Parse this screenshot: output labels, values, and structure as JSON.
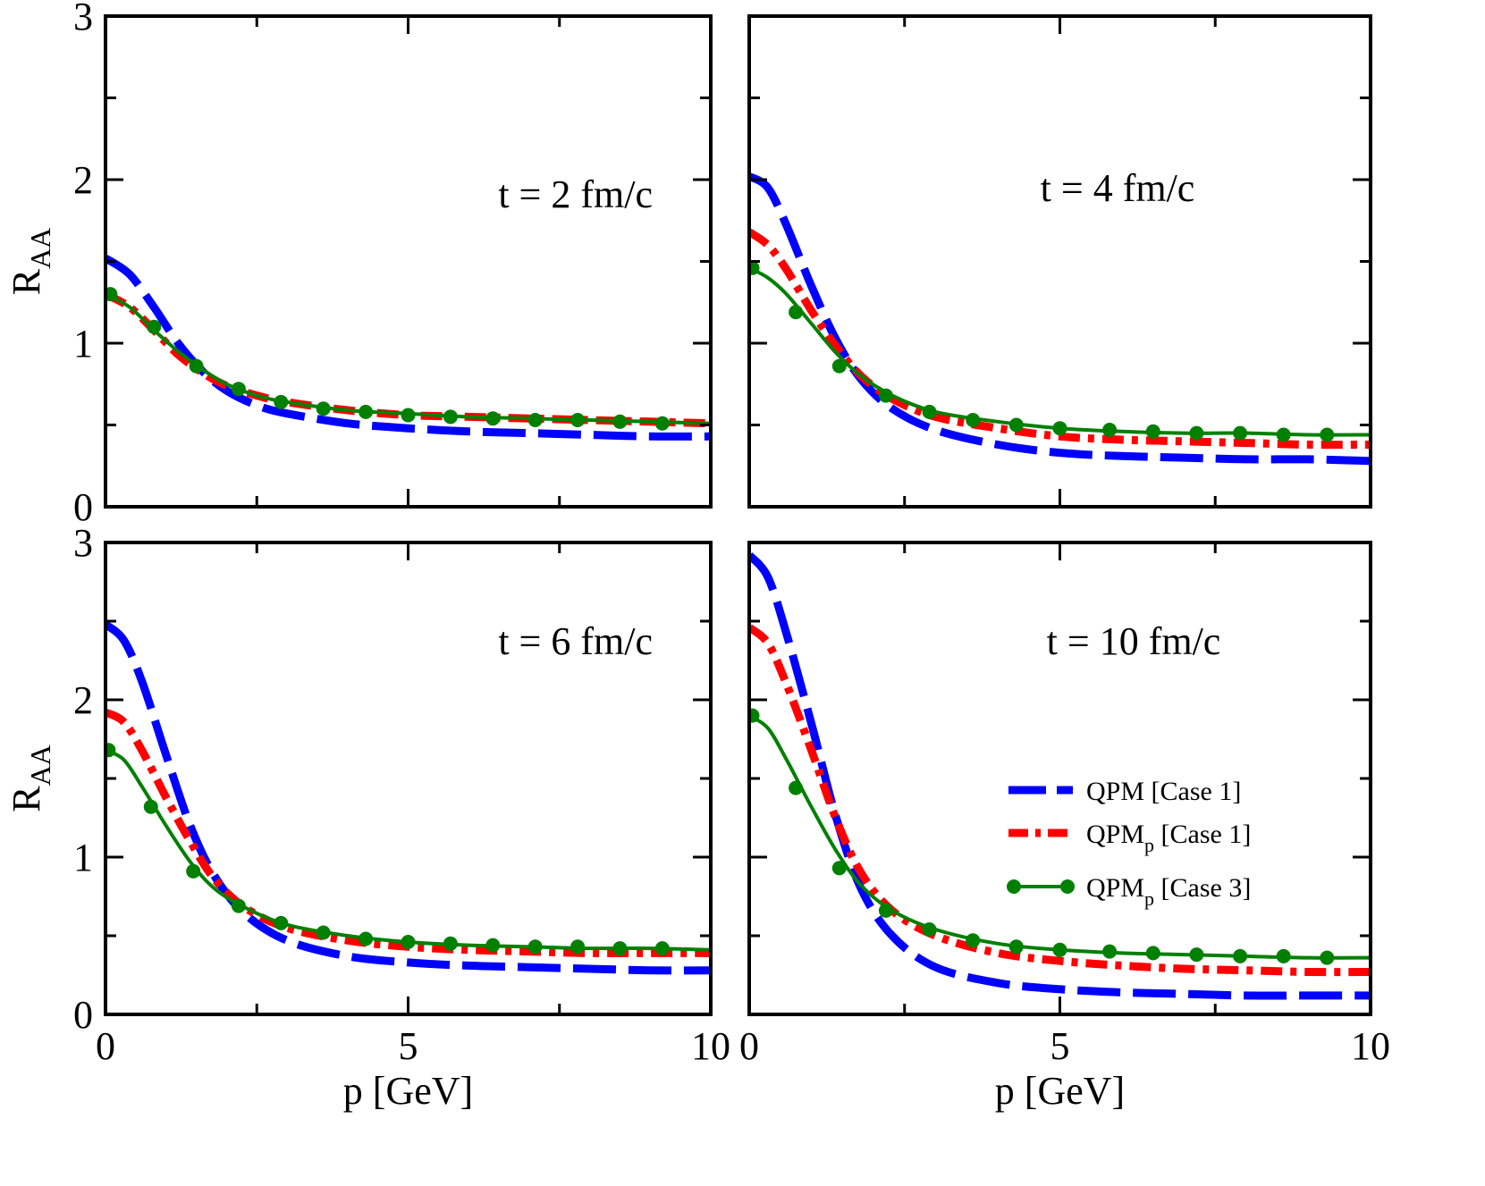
{
  "chart_data": [
    {
      "type": "line",
      "panel": "top-left",
      "annotation": "t = 2 fm/c",
      "xlabel": "",
      "ylabel": "R",
      "ylabel_sub": "AA",
      "xlim": [
        0,
        10
      ],
      "ylim": [
        0,
        3
      ],
      "xticks": [],
      "yticks": [
        "0",
        "1",
        "2",
        "3"
      ],
      "series": [
        {
          "name": "QPM [Case 1]",
          "style": "dashed",
          "color": "#0000ff",
          "points": [
            [
              0,
              1.52
            ],
            [
              0.4,
              1.42
            ],
            [
              0.8,
              1.22
            ],
            [
              1.2,
              1.0
            ],
            [
              1.6,
              0.83
            ],
            [
              2.0,
              0.71
            ],
            [
              2.5,
              0.62
            ],
            [
              3.0,
              0.57
            ],
            [
              4.0,
              0.51
            ],
            [
              5.0,
              0.48
            ],
            [
              6.0,
              0.46
            ],
            [
              7.0,
              0.45
            ],
            [
              8.0,
              0.44
            ],
            [
              9.0,
              0.43
            ],
            [
              10.0,
              0.43
            ]
          ]
        },
        {
          "name": "QPMp [Case 1]",
          "style": "dashdot",
          "color": "#ff0000",
          "points": [
            [
              0,
              1.3
            ],
            [
              0.4,
              1.22
            ],
            [
              0.8,
              1.08
            ],
            [
              1.2,
              0.93
            ],
            [
              1.6,
              0.82
            ],
            [
              2.0,
              0.74
            ],
            [
              2.5,
              0.68
            ],
            [
              3.0,
              0.64
            ],
            [
              4.0,
              0.59
            ],
            [
              5.0,
              0.56
            ],
            [
              6.0,
              0.55
            ],
            [
              7.0,
              0.54
            ],
            [
              8.0,
              0.53
            ],
            [
              9.0,
              0.52
            ],
            [
              10.0,
              0.51
            ]
          ]
        },
        {
          "name": "QPMp [Case 3]",
          "style": "solid-marker",
          "color": "#008000",
          "points": [
            [
              0,
              1.3
            ],
            [
              0.4,
              1.22
            ],
            [
              0.8,
              1.08
            ],
            [
              1.2,
              0.95
            ],
            [
              1.6,
              0.84
            ],
            [
              2.0,
              0.75
            ],
            [
              2.5,
              0.68
            ],
            [
              3.0,
              0.64
            ],
            [
              4.0,
              0.59
            ],
            [
              5.0,
              0.57
            ],
            [
              6.0,
              0.55
            ],
            [
              7.0,
              0.54
            ],
            [
              8.0,
              0.53
            ],
            [
              9.0,
              0.52
            ],
            [
              10.0,
              0.51
            ]
          ],
          "markers": [
            [
              0.08,
              1.3
            ],
            [
              0.8,
              1.1
            ],
            [
              1.5,
              0.86
            ],
            [
              2.2,
              0.72
            ],
            [
              2.9,
              0.64
            ],
            [
              3.6,
              0.6
            ],
            [
              4.3,
              0.58
            ],
            [
              5.0,
              0.56
            ],
            [
              5.7,
              0.55
            ],
            [
              6.4,
              0.54
            ],
            [
              7.1,
              0.53
            ],
            [
              7.8,
              0.53
            ],
            [
              8.5,
              0.52
            ],
            [
              9.2,
              0.51
            ]
          ]
        }
      ]
    },
    {
      "type": "line",
      "panel": "top-right",
      "annotation": "t = 4 fm/c",
      "xlabel": "",
      "ylabel": "",
      "xlim": [
        0,
        10
      ],
      "ylim": [
        0,
        3
      ],
      "xticks": [],
      "yticks": [],
      "series": [
        {
          "name": "QPM [Case 1]",
          "style": "dashed",
          "color": "#0000ff",
          "points": [
            [
              0,
              2.02
            ],
            [
              0.3,
              1.95
            ],
            [
              0.6,
              1.72
            ],
            [
              1.0,
              1.35
            ],
            [
              1.4,
              1.02
            ],
            [
              1.8,
              0.78
            ],
            [
              2.3,
              0.6
            ],
            [
              3.0,
              0.47
            ],
            [
              4.0,
              0.38
            ],
            [
              5.0,
              0.33
            ],
            [
              6.0,
              0.31
            ],
            [
              7.0,
              0.3
            ],
            [
              8.0,
              0.29
            ],
            [
              9.0,
              0.29
            ],
            [
              10.0,
              0.28
            ]
          ]
        },
        {
          "name": "QPMp [Case 1]",
          "style": "dashdot",
          "color": "#ff0000",
          "points": [
            [
              0,
              1.68
            ],
            [
              0.3,
              1.6
            ],
            [
              0.6,
              1.45
            ],
            [
              1.0,
              1.2
            ],
            [
              1.4,
              0.98
            ],
            [
              1.8,
              0.8
            ],
            [
              2.3,
              0.66
            ],
            [
              3.0,
              0.55
            ],
            [
              4.0,
              0.48
            ],
            [
              5.0,
              0.43
            ],
            [
              6.0,
              0.41
            ],
            [
              7.0,
              0.4
            ],
            [
              8.0,
              0.39
            ],
            [
              9.0,
              0.38
            ],
            [
              10.0,
              0.38
            ]
          ]
        },
        {
          "name": "QPMp [Case 3]",
          "style": "solid-marker",
          "color": "#008000",
          "points": [
            [
              0,
              1.46
            ],
            [
              0.3,
              1.4
            ],
            [
              0.6,
              1.3
            ],
            [
              1.0,
              1.12
            ],
            [
              1.4,
              0.94
            ],
            [
              1.8,
              0.8
            ],
            [
              2.3,
              0.68
            ],
            [
              3.0,
              0.58
            ],
            [
              4.0,
              0.52
            ],
            [
              5.0,
              0.48
            ],
            [
              6.0,
              0.46
            ],
            [
              7.0,
              0.45
            ],
            [
              8.0,
              0.45
            ],
            [
              9.0,
              0.44
            ],
            [
              10.0,
              0.44
            ]
          ],
          "markers": [
            [
              0.05,
              1.46
            ],
            [
              0.75,
              1.19
            ],
            [
              1.45,
              0.86
            ],
            [
              2.2,
              0.68
            ],
            [
              2.9,
              0.58
            ],
            [
              3.6,
              0.53
            ],
            [
              4.3,
              0.5
            ],
            [
              5.0,
              0.48
            ],
            [
              5.8,
              0.47
            ],
            [
              6.5,
              0.46
            ],
            [
              7.2,
              0.45
            ],
            [
              7.9,
              0.45
            ],
            [
              8.6,
              0.44
            ],
            [
              9.3,
              0.44
            ]
          ]
        }
      ]
    },
    {
      "type": "line",
      "panel": "bottom-left",
      "annotation": "t = 6 fm/c",
      "xlabel": "p [GeV]",
      "ylabel": "R",
      "ylabel_sub": "AA",
      "xlim": [
        0,
        10
      ],
      "ylim": [
        0,
        3
      ],
      "xticks": [
        "0",
        "5",
        "10"
      ],
      "yticks": [
        "0",
        "1",
        "2",
        "3"
      ],
      "series": [
        {
          "name": "QPM [Case 1]",
          "style": "dashed",
          "color": "#0000ff",
          "points": [
            [
              0,
              2.48
            ],
            [
              0.3,
              2.38
            ],
            [
              0.6,
              2.12
            ],
            [
              1.0,
              1.65
            ],
            [
              1.4,
              1.2
            ],
            [
              1.8,
              0.88
            ],
            [
              2.3,
              0.64
            ],
            [
              3.0,
              0.47
            ],
            [
              4.0,
              0.37
            ],
            [
              5.0,
              0.33
            ],
            [
              6.0,
              0.31
            ],
            [
              7.0,
              0.3
            ],
            [
              8.0,
              0.29
            ],
            [
              9.0,
              0.28
            ],
            [
              10.0,
              0.28
            ]
          ]
        },
        {
          "name": "QPMp [Case 1]",
          "style": "dashdot",
          "color": "#ff0000",
          "points": [
            [
              0,
              1.92
            ],
            [
              0.3,
              1.86
            ],
            [
              0.6,
              1.68
            ],
            [
              1.0,
              1.38
            ],
            [
              1.4,
              1.1
            ],
            [
              1.8,
              0.86
            ],
            [
              2.3,
              0.68
            ],
            [
              3.0,
              0.55
            ],
            [
              4.0,
              0.47
            ],
            [
              5.0,
              0.43
            ],
            [
              6.0,
              0.41
            ],
            [
              7.0,
              0.4
            ],
            [
              8.0,
              0.39
            ],
            [
              9.0,
              0.39
            ],
            [
              10.0,
              0.39
            ]
          ]
        },
        {
          "name": "QPMp [Case 3]",
          "style": "solid-marker",
          "color": "#008000",
          "points": [
            [
              0,
              1.68
            ],
            [
              0.3,
              1.62
            ],
            [
              0.6,
              1.45
            ],
            [
              1.0,
              1.2
            ],
            [
              1.4,
              0.97
            ],
            [
              1.8,
              0.8
            ],
            [
              2.3,
              0.68
            ],
            [
              3.0,
              0.57
            ],
            [
              4.0,
              0.5
            ],
            [
              5.0,
              0.46
            ],
            [
              6.0,
              0.44
            ],
            [
              7.0,
              0.43
            ],
            [
              8.0,
              0.42
            ],
            [
              9.0,
              0.42
            ],
            [
              10.0,
              0.41
            ]
          ],
          "markers": [
            [
              0.05,
              1.68
            ],
            [
              0.75,
              1.32
            ],
            [
              1.45,
              0.91
            ],
            [
              2.2,
              0.69
            ],
            [
              2.9,
              0.58
            ],
            [
              3.6,
              0.52
            ],
            [
              4.3,
              0.48
            ],
            [
              5.0,
              0.46
            ],
            [
              5.7,
              0.45
            ],
            [
              6.4,
              0.44
            ],
            [
              7.1,
              0.43
            ],
            [
              7.8,
              0.43
            ],
            [
              8.5,
              0.42
            ],
            [
              9.2,
              0.42
            ]
          ]
        }
      ]
    },
    {
      "type": "line",
      "panel": "bottom-right",
      "annotation": "t = 10 fm/c",
      "xlabel": "p [GeV]",
      "ylabel": "",
      "xlim": [
        0,
        10
      ],
      "ylim": [
        0,
        3
      ],
      "xticks": [
        "0",
        "5",
        "10"
      ],
      "yticks": [],
      "series": [
        {
          "name": "QPM [Case 1]",
          "style": "dashed",
          "color": "#0000ff",
          "points": [
            [
              0,
              2.92
            ],
            [
              0.3,
              2.78
            ],
            [
              0.6,
              2.42
            ],
            [
              1.0,
              1.85
            ],
            [
              1.4,
              1.25
            ],
            [
              1.8,
              0.8
            ],
            [
              2.3,
              0.5
            ],
            [
              3.0,
              0.3
            ],
            [
              4.0,
              0.2
            ],
            [
              5.0,
              0.16
            ],
            [
              6.0,
              0.14
            ],
            [
              7.0,
              0.13
            ],
            [
              8.0,
              0.12
            ],
            [
              9.0,
              0.12
            ],
            [
              10.0,
              0.12
            ]
          ]
        },
        {
          "name": "QPMp [Case 1]",
          "style": "dashdot",
          "color": "#ff0000",
          "points": [
            [
              0,
              2.46
            ],
            [
              0.3,
              2.36
            ],
            [
              0.6,
              2.1
            ],
            [
              1.0,
              1.68
            ],
            [
              1.4,
              1.24
            ],
            [
              1.8,
              0.9
            ],
            [
              2.3,
              0.66
            ],
            [
              3.0,
              0.5
            ],
            [
              4.0,
              0.39
            ],
            [
              5.0,
              0.34
            ],
            [
              6.0,
              0.31
            ],
            [
              7.0,
              0.29
            ],
            [
              8.0,
              0.28
            ],
            [
              9.0,
              0.27
            ],
            [
              10.0,
              0.27
            ]
          ]
        },
        {
          "name": "QPMp [Case 3]",
          "style": "solid-marker",
          "color": "#008000",
          "points": [
            [
              0,
              1.9
            ],
            [
              0.3,
              1.82
            ],
            [
              0.6,
              1.62
            ],
            [
              1.0,
              1.32
            ],
            [
              1.4,
              1.04
            ],
            [
              1.8,
              0.82
            ],
            [
              2.3,
              0.66
            ],
            [
              3.0,
              0.54
            ],
            [
              4.0,
              0.45
            ],
            [
              5.0,
              0.41
            ],
            [
              6.0,
              0.39
            ],
            [
              7.0,
              0.38
            ],
            [
              8.0,
              0.37
            ],
            [
              9.0,
              0.36
            ],
            [
              10.0,
              0.36
            ]
          ],
          "markers": [
            [
              0.05,
              1.9
            ],
            [
              0.75,
              1.44
            ],
            [
              1.45,
              0.93
            ],
            [
              2.2,
              0.66
            ],
            [
              2.9,
              0.54
            ],
            [
              3.6,
              0.47
            ],
            [
              4.3,
              0.43
            ],
            [
              5.0,
              0.41
            ],
            [
              5.8,
              0.4
            ],
            [
              6.5,
              0.39
            ],
            [
              7.2,
              0.38
            ],
            [
              7.9,
              0.37
            ],
            [
              8.6,
              0.37
            ],
            [
              9.3,
              0.36
            ]
          ]
        }
      ]
    }
  ],
  "legend": {
    "entries": [
      {
        "name": "QPM [Case 1]",
        "label_main": "QPM [Case 1]",
        "label_sub": "",
        "label_rest": "",
        "color": "#0000ff",
        "style": "dashed"
      },
      {
        "name": "QPMp [Case 1]",
        "label_main": "QPM",
        "label_sub": "p",
        "label_rest": " [Case 1]",
        "color": "#ff0000",
        "style": "dashdot"
      },
      {
        "name": "QPMp [Case 3]",
        "label_main": "QPM",
        "label_sub": "p",
        "label_rest": " [Case 3]",
        "color": "#008000",
        "style": "solid-marker"
      }
    ]
  }
}
